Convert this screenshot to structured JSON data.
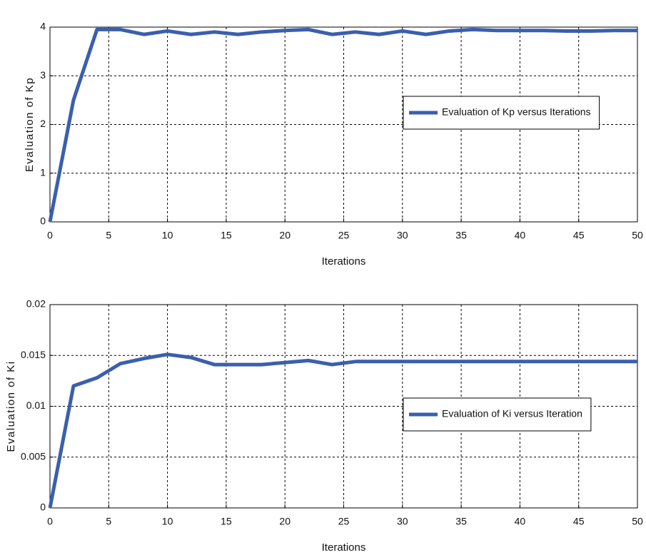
{
  "chart_data": [
    {
      "type": "line",
      "xlabel": "Iterations",
      "ylabel": "Evaluation of Kp",
      "x": [
        0,
        2,
        4,
        6,
        8,
        10,
        12,
        14,
        16,
        18,
        20,
        22,
        24,
        26,
        28,
        30,
        32,
        34,
        36,
        38,
        40,
        42,
        44,
        46,
        48,
        50
      ],
      "series": [
        {
          "name": "Evaluation of Kp versus Iterations",
          "color": "#3a5fad",
          "values": [
            0,
            2.5,
            3.95,
            3.95,
            3.85,
            3.92,
            3.85,
            3.9,
            3.85,
            3.9,
            3.93,
            3.95,
            3.85,
            3.9,
            3.85,
            3.92,
            3.85,
            3.92,
            3.95,
            3.93,
            3.93,
            3.93,
            3.92,
            3.92,
            3.93,
            3.93
          ]
        }
      ],
      "xlim": [
        0,
        50
      ],
      "xticks": [
        0,
        5,
        10,
        15,
        20,
        25,
        30,
        35,
        40,
        45,
        50
      ],
      "ylim": [
        0,
        4
      ],
      "yticks": [
        0,
        1,
        2,
        3,
        4
      ],
      "grid": true,
      "legend": "right"
    },
    {
      "type": "line",
      "xlabel": "Iterations",
      "ylabel": "Evaluation of Ki",
      "x": [
        0,
        2,
        4,
        6,
        8,
        10,
        12,
        14,
        16,
        18,
        20,
        22,
        24,
        26,
        28,
        30,
        32,
        34,
        36,
        38,
        40,
        42,
        44,
        46,
        48,
        50
      ],
      "series": [
        {
          "name": "Evaluation of Ki versus Iteration",
          "color": "#3a5fad",
          "values": [
            0,
            0.012,
            0.0128,
            0.0142,
            0.0147,
            0.0151,
            0.0148,
            0.0141,
            0.0141,
            0.0141,
            0.0143,
            0.0145,
            0.0141,
            0.0144,
            0.0144,
            0.0144,
            0.0144,
            0.0144,
            0.0144,
            0.0144,
            0.0144,
            0.0144,
            0.0144,
            0.0144,
            0.0144,
            0.0144
          ]
        }
      ],
      "xlim": [
        0,
        50
      ],
      "xticks": [
        0,
        5,
        10,
        15,
        20,
        25,
        30,
        35,
        40,
        45,
        50
      ],
      "ylim": [
        0,
        0.02
      ],
      "yticks": [
        0,
        0.005,
        0.01,
        0.015,
        0.02
      ],
      "grid": true,
      "legend": "right"
    }
  ]
}
